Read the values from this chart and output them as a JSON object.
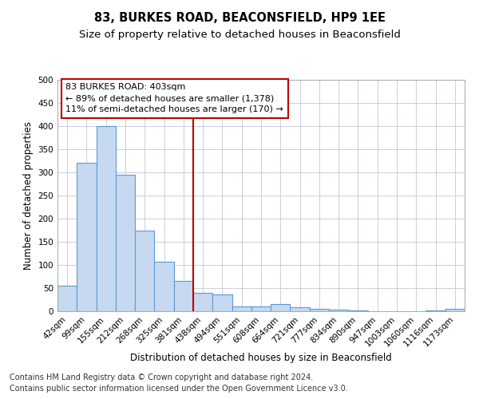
{
  "title": "83, BURKES ROAD, BEACONSFIELD, HP9 1EE",
  "subtitle": "Size of property relative to detached houses in Beaconsfield",
  "xlabel": "Distribution of detached houses by size in Beaconsfield",
  "ylabel": "Number of detached properties",
  "categories": [
    "42sqm",
    "99sqm",
    "155sqm",
    "212sqm",
    "268sqm",
    "325sqm",
    "381sqm",
    "438sqm",
    "494sqm",
    "551sqm",
    "608sqm",
    "664sqm",
    "721sqm",
    "777sqm",
    "834sqm",
    "890sqm",
    "947sqm",
    "1003sqm",
    "1060sqm",
    "1116sqm",
    "1173sqm"
  ],
  "values": [
    55,
    320,
    400,
    295,
    175,
    107,
    65,
    40,
    36,
    10,
    10,
    15,
    9,
    6,
    3,
    1,
    0,
    0,
    0,
    1,
    5
  ],
  "bar_color": "#c6d9f0",
  "bar_edge_color": "#5b9bd5",
  "vline_x_index": 6.5,
  "vline_color": "#c00000",
  "annotation_line1": "83 BURKES ROAD: 403sqm",
  "annotation_line2": "← 89% of detached houses are smaller (1,378)",
  "annotation_line3": "11% of semi-detached houses are larger (170) →",
  "annotation_box_color": "#c00000",
  "footnote1": "Contains HM Land Registry data © Crown copyright and database right 2024.",
  "footnote2": "Contains public sector information licensed under the Open Government Licence v3.0.",
  "ylim": [
    0,
    500
  ],
  "yticks": [
    0,
    50,
    100,
    150,
    200,
    250,
    300,
    350,
    400,
    450,
    500
  ],
  "background_color": "#ffffff",
  "grid_color": "#c0c8d8",
  "title_fontsize": 10.5,
  "subtitle_fontsize": 9.5,
  "axis_label_fontsize": 8.5,
  "tick_fontsize": 7.5,
  "annotation_fontsize": 8,
  "footnote_fontsize": 7
}
